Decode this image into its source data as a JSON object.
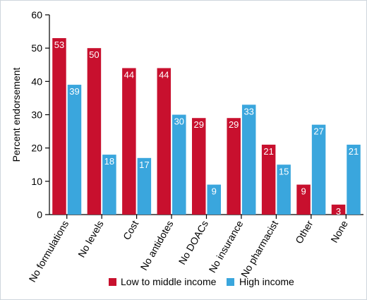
{
  "chart_data": {
    "type": "bar",
    "title": "",
    "xlabel": "",
    "ylabel": "Percent endorsement",
    "ylim": [
      0,
      60
    ],
    "yticks": [
      0,
      10,
      20,
      30,
      40,
      50,
      60
    ],
    "grid": false,
    "legend_position": "bottom",
    "categories": [
      "No formulations",
      "No levels",
      "Cost",
      "No antidotes",
      "No DOACs",
      "No insurance",
      "No pharmacist",
      "Other",
      "None"
    ],
    "series": [
      {
        "name": "Low to middle income",
        "color": "#c8102e",
        "values": [
          53,
          50,
          44,
          44,
          29,
          29,
          21,
          9,
          3
        ]
      },
      {
        "name": "High income",
        "color": "#3aa6dd",
        "values": [
          39,
          18,
          17,
          30,
          9,
          33,
          15,
          27,
          21
        ]
      }
    ]
  }
}
